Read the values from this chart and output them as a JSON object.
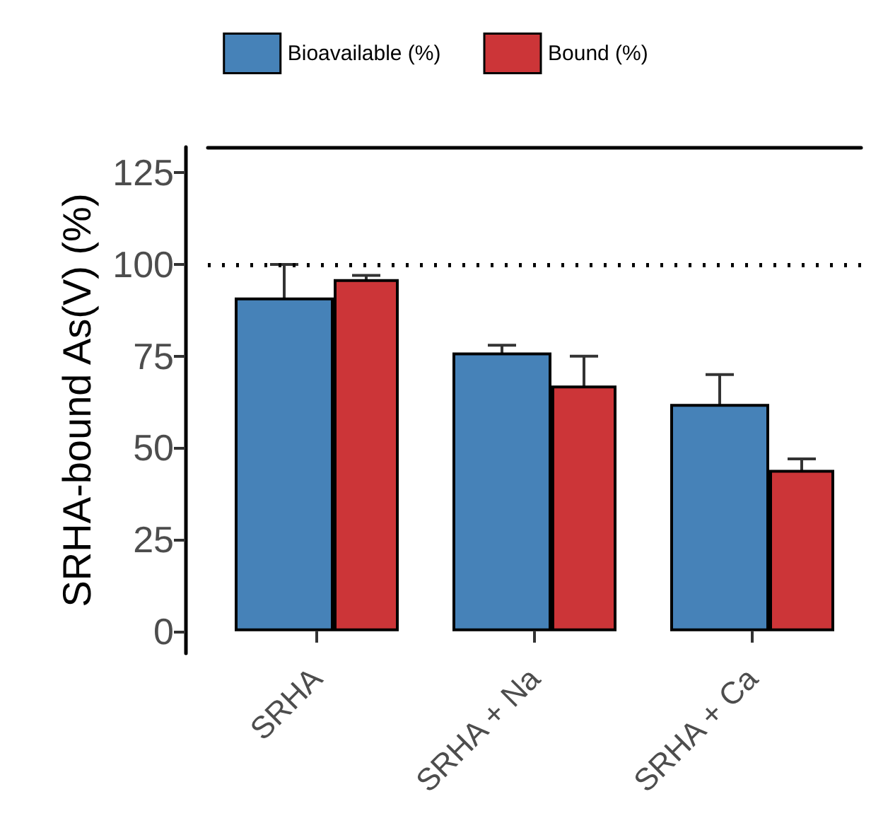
{
  "chart_data": {
    "type": "bar",
    "ylabel": "SRHA-bound As(V) (%)",
    "categories": [
      "SRHA",
      "SRHA + Na",
      "SRHA + Ca"
    ],
    "series": [
      {
        "name": "Bioavailable (%)",
        "color": "#4682b8",
        "values": [
          91,
          76,
          62
        ],
        "errors": [
          9,
          2,
          8
        ]
      },
      {
        "name": "Bound (%)",
        "color": "#cc3538",
        "values": [
          96,
          67,
          44
        ],
        "errors": [
          1,
          8,
          3
        ]
      }
    ],
    "ylim": [
      -6,
      132
    ],
    "yticks": [
      0,
      25,
      50,
      75,
      100,
      125
    ],
    "ref_lines": [
      {
        "axis": "y",
        "value": 100,
        "line_style": "dotted",
        "color": "#000000"
      }
    ],
    "grid": false,
    "legend": "top"
  }
}
